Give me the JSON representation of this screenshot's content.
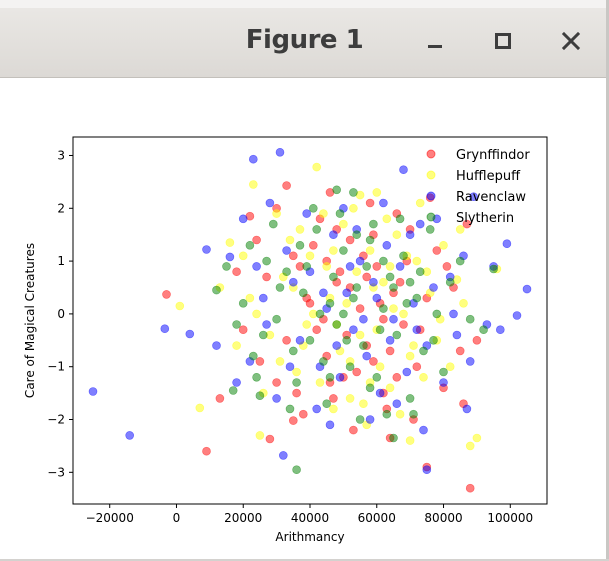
{
  "window": {
    "title": "Figure 1",
    "buttons": {
      "minimize": "minimize",
      "maximize": "maximize",
      "close": "close"
    }
  },
  "colors": {
    "Grynffindor": "#ff0000",
    "Hufflepuff": "#ffff00",
    "Ravenclaw": "#0000ff",
    "Slytherin": "#008000"
  },
  "chart_data": {
    "type": "scatter",
    "title": "",
    "xlabel": "Arithmancy",
    "ylabel": "Care of Magical Creatures",
    "xlim": [
      -31000,
      111000
    ],
    "ylim": [
      -3.6,
      3.35
    ],
    "xticks": [
      -20000,
      0,
      20000,
      40000,
      60000,
      80000,
      100000
    ],
    "xtick_labels": [
      "−20000",
      "0",
      "20000",
      "40000",
      "60000",
      "80000",
      "100000"
    ],
    "yticks": [
      -3,
      -2,
      -1,
      0,
      1,
      2,
      3
    ],
    "ytick_labels": [
      "−3",
      "−2",
      "−1",
      "0",
      "1",
      "2",
      "3"
    ],
    "grid": false,
    "legend_position": "top-right",
    "marker_alpha": 0.5,
    "series": [
      {
        "name": "Grynffindor",
        "color": "#ff0000",
        "points": [
          [
            -3000,
            0.37
          ],
          [
            9000,
            -2.6
          ],
          [
            33000,
            2.43
          ],
          [
            88000,
            -3.3
          ],
          [
            75000,
            -2.9
          ],
          [
            64000,
            -2.35
          ],
          [
            28000,
            -2.37
          ],
          [
            35000,
            -2.02
          ],
          [
            46000,
            2.3
          ],
          [
            13000,
            -1.6
          ],
          [
            22000,
            1.85
          ],
          [
            30000,
            2.0
          ],
          [
            35000,
            1.1
          ],
          [
            40000,
            0.2
          ],
          [
            42000,
            -0.3
          ],
          [
            45000,
            -0.8
          ],
          [
            48000,
            0.6
          ],
          [
            50000,
            -1.2
          ],
          [
            52000,
            1.4
          ],
          [
            55000,
            0.1
          ],
          [
            57000,
            -0.6
          ],
          [
            60000,
            0.9
          ],
          [
            62000,
            -1.5
          ],
          [
            65000,
            0.4
          ],
          [
            68000,
            -0.2
          ],
          [
            70000,
            1.6
          ],
          [
            72000,
            -1.0
          ],
          [
            75000,
            0.3
          ],
          [
            78000,
            1.2
          ],
          [
            80000,
            -1.4
          ],
          [
            83000,
            0.5
          ],
          [
            85000,
            -0.7
          ],
          [
            87000,
            1.7
          ],
          [
            90000,
            -0.5
          ],
          [
            25000,
            -0.9
          ],
          [
            27000,
            0.7
          ],
          [
            38000,
            -1.9
          ],
          [
            43000,
            1.8
          ],
          [
            47000,
            -1.6
          ],
          [
            53000,
            -2.2
          ],
          [
            58000,
            2.1
          ],
          [
            63000,
            -1.8
          ],
          [
            66000,
            1.9
          ],
          [
            71000,
            -2.0
          ],
          [
            76000,
            2.2
          ],
          [
            33000,
            -0.5
          ],
          [
            37000,
            0.9
          ],
          [
            44000,
            -0.1
          ],
          [
            49000,
            0.8
          ],
          [
            51000,
            -0.4
          ],
          [
            56000,
            1.1
          ],
          [
            59000,
            -0.9
          ],
          [
            61000,
            0.2
          ],
          [
            64000,
            -0.7
          ],
          [
            67000,
            0.6
          ],
          [
            20000,
            -0.3
          ],
          [
            18000,
            0.8
          ],
          [
            30000,
            -1.3
          ],
          [
            41000,
            1.3
          ],
          [
            54000,
            -1.1
          ],
          [
            69000,
            1.0
          ],
          [
            73000,
            -0.3
          ],
          [
            81000,
            0.9
          ],
          [
            86000,
            -1.7
          ],
          [
            24000,
            1.4
          ],
          [
            36000,
            -1.5
          ],
          [
            48000,
            1.6
          ],
          [
            59000,
            1.5
          ],
          [
            62000,
            -0.1
          ],
          [
            46000,
            -1.3
          ],
          [
            52000,
            0.5
          ],
          [
            39000,
            0.3
          ],
          [
            57000,
            0.7
          ],
          [
            45000,
            1.0
          ],
          [
            66000,
            -1.2
          ]
        ]
      },
      {
        "name": "Hufflepuff",
        "color": "#ffff00",
        "points": [
          [
            42000,
            2.78
          ],
          [
            1000,
            0.15
          ],
          [
            7000,
            -1.78
          ],
          [
            16000,
            1.35
          ],
          [
            23000,
            2.45
          ],
          [
            90000,
            -2.35
          ],
          [
            88000,
            -2.5
          ],
          [
            70000,
            -2.4
          ],
          [
            55000,
            2.25
          ],
          [
            60000,
            2.3
          ],
          [
            85000,
            1.6
          ],
          [
            96000,
            0.85
          ],
          [
            84000,
            0.65
          ],
          [
            13000,
            0.5
          ],
          [
            25000,
            -2.3
          ],
          [
            30000,
            1.9
          ],
          [
            35000,
            0.5
          ],
          [
            38000,
            -0.6
          ],
          [
            40000,
            1.1
          ],
          [
            43000,
            -1.3
          ],
          [
            46000,
            0.3
          ],
          [
            48000,
            -0.2
          ],
          [
            50000,
            1.7
          ],
          [
            52000,
            -0.9
          ],
          [
            54000,
            0.8
          ],
          [
            56000,
            -1.7
          ],
          [
            58000,
            1.2
          ],
          [
            60000,
            -0.3
          ],
          [
            62000,
            0.6
          ],
          [
            64000,
            -1.4
          ],
          [
            66000,
            1.5
          ],
          [
            68000,
            0.0
          ],
          [
            70000,
            -0.8
          ],
          [
            72000,
            1.0
          ],
          [
            74000,
            -1.2
          ],
          [
            76000,
            0.4
          ],
          [
            78000,
            -0.5
          ],
          [
            80000,
            1.3
          ],
          [
            82000,
            -1.0
          ],
          [
            86000,
            0.2
          ],
          [
            28000,
            -0.4
          ],
          [
            32000,
            0.7
          ],
          [
            36000,
            -1.1
          ],
          [
            44000,
            1.9
          ],
          [
            47000,
            -1.8
          ],
          [
            53000,
            2.0
          ],
          [
            57000,
            -2.1
          ],
          [
            63000,
            1.8
          ],
          [
            67000,
            -1.9
          ],
          [
            73000,
            2.1
          ],
          [
            22000,
            0.3
          ],
          [
            26000,
            -1.5
          ],
          [
            34000,
            1.4
          ],
          [
            39000,
            -0.2
          ],
          [
            45000,
            0.9
          ],
          [
            49000,
            -0.7
          ],
          [
            51000,
            0.2
          ],
          [
            55000,
            -0.4
          ],
          [
            59000,
            0.5
          ],
          [
            61000,
            -1.0
          ],
          [
            65000,
            0.1
          ],
          [
            69000,
            1.1
          ],
          [
            71000,
            -0.6
          ],
          [
            75000,
            0.8
          ],
          [
            79000,
            -0.1
          ],
          [
            18000,
            -0.6
          ],
          [
            20000,
            1.1
          ],
          [
            24000,
            0.0
          ],
          [
            31000,
            -0.9
          ],
          [
            41000,
            0.0
          ],
          [
            37000,
            1.6
          ],
          [
            47000,
            1.2
          ],
          [
            58000,
            -1.3
          ],
          [
            64000,
            0.9
          ],
          [
            52000,
            -1.6
          ]
        ]
      },
      {
        "name": "Ravenclaw",
        "color": "#0000ff",
        "points": [
          [
            -25000,
            -1.47
          ],
          [
            -14000,
            -2.3
          ],
          [
            -3500,
            -0.28
          ],
          [
            23000,
            2.93
          ],
          [
            31000,
            3.06
          ],
          [
            68000,
            2.73
          ],
          [
            89000,
            2.22
          ],
          [
            99000,
            1.33
          ],
          [
            105000,
            0.47
          ],
          [
            102000,
            -0.03
          ],
          [
            75000,
            -2.95
          ],
          [
            87000,
            -1.8
          ],
          [
            32000,
            -2.68
          ],
          [
            9000,
            1.22
          ],
          [
            16000,
            1.08
          ],
          [
            4000,
            -0.38
          ],
          [
            12000,
            -0.6
          ],
          [
            20000,
            1.8
          ],
          [
            28000,
            2.1
          ],
          [
            33000,
            1.2
          ],
          [
            37000,
            -0.5
          ],
          [
            40000,
            0.8
          ],
          [
            43000,
            -1.0
          ],
          [
            45000,
            0.1
          ],
          [
            47000,
            1.5
          ],
          [
            49000,
            -1.2
          ],
          [
            51000,
            0.4
          ],
          [
            53000,
            -0.3
          ],
          [
            55000,
            1.0
          ],
          [
            57000,
            -0.8
          ],
          [
            59000,
            0.6
          ],
          [
            61000,
            -1.5
          ],
          [
            63000,
            1.3
          ],
          [
            65000,
            -0.1
          ],
          [
            67000,
            0.9
          ],
          [
            69000,
            -1.1
          ],
          [
            71000,
            0.2
          ],
          [
            73000,
            1.7
          ],
          [
            75000,
            -0.6
          ],
          [
            77000,
            0.5
          ],
          [
            80000,
            -1.3
          ],
          [
            83000,
            0.0
          ],
          [
            86000,
            1.1
          ],
          [
            88000,
            -0.9
          ],
          [
            93000,
            -0.2
          ],
          [
            95000,
            0.9
          ],
          [
            97000,
            -0.3
          ],
          [
            18000,
            -1.3
          ],
          [
            22000,
            -0.9
          ],
          [
            26000,
            0.3
          ],
          [
            30000,
            -1.6
          ],
          [
            35000,
            0.6
          ],
          [
            39000,
            1.9
          ],
          [
            42000,
            -1.8
          ],
          [
            46000,
            -2.1
          ],
          [
            50000,
            2.0
          ],
          [
            54000,
            1.6
          ],
          [
            58000,
            -2.0
          ],
          [
            62000,
            2.1
          ],
          [
            66000,
            -1.7
          ],
          [
            70000,
            1.5
          ],
          [
            74000,
            -2.2
          ],
          [
            78000,
            1.8
          ],
          [
            82000,
            0.7
          ],
          [
            84000,
            -0.4
          ],
          [
            24000,
            0.9
          ],
          [
            27000,
            -0.2
          ],
          [
            34000,
            -1.0
          ],
          [
            44000,
            0.4
          ],
          [
            48000,
            -0.6
          ],
          [
            52000,
            0.9
          ],
          [
            56000,
            -0.1
          ],
          [
            60000,
            0.3
          ],
          [
            64000,
            -0.5
          ],
          [
            72000,
            -0.3
          ]
        ]
      },
      {
        "name": "Slytherin",
        "color": "#008000",
        "points": [
          [
            36000,
            -2.95
          ],
          [
            65000,
            -2.35
          ],
          [
            12000,
            0.45
          ],
          [
            17000,
            -1.45
          ],
          [
            25000,
            -1.55
          ],
          [
            53000,
            2.3
          ],
          [
            48000,
            2.35
          ],
          [
            95000,
            0.85
          ],
          [
            92000,
            -0.3
          ],
          [
            82000,
            0.6
          ],
          [
            20000,
            0.2
          ],
          [
            23000,
            -0.8
          ],
          [
            27000,
            1.0
          ],
          [
            30000,
            -0.1
          ],
          [
            33000,
            0.8
          ],
          [
            36000,
            -1.3
          ],
          [
            38000,
            0.4
          ],
          [
            40000,
            -0.5
          ],
          [
            42000,
            1.6
          ],
          [
            44000,
            -0.9
          ],
          [
            46000,
            0.2
          ],
          [
            48000,
            -0.2
          ],
          [
            50000,
            1.2
          ],
          [
            52000,
            -1.0
          ],
          [
            54000,
            0.5
          ],
          [
            56000,
            -0.6
          ],
          [
            58000,
            1.4
          ],
          [
            60000,
            -1.2
          ],
          [
            62000,
            0.1
          ],
          [
            64000,
            0.7
          ],
          [
            66000,
            -0.4
          ],
          [
            68000,
            1.1
          ],
          [
            70000,
            -1.6
          ],
          [
            72000,
            0.3
          ],
          [
            74000,
            -0.7
          ],
          [
            76000,
            1.6
          ],
          [
            78000,
            0.0
          ],
          [
            80000,
            -1.1
          ],
          [
            85000,
            1.0
          ],
          [
            88000,
            -0.1
          ],
          [
            29000,
            1.7
          ],
          [
            34000,
            -1.8
          ],
          [
            41000,
            2.0
          ],
          [
            45000,
            -1.7
          ],
          [
            49000,
            1.9
          ],
          [
            55000,
            -2.0
          ],
          [
            59000,
            1.7
          ],
          [
            63000,
            -1.9
          ],
          [
            67000,
            1.8
          ],
          [
            71000,
            -1.9
          ],
          [
            22000,
            1.3
          ],
          [
            26000,
            -0.4
          ],
          [
            31000,
            0.5
          ],
          [
            35000,
            -0.7
          ],
          [
            39000,
            0.9
          ],
          [
            43000,
            0.0
          ],
          [
            47000,
            0.7
          ],
          [
            51000,
            -0.5
          ],
          [
            53000,
            0.3
          ],
          [
            57000,
            0.9
          ],
          [
            61000,
            -0.3
          ],
          [
            65000,
            0.5
          ],
          [
            69000,
            0.2
          ],
          [
            73000,
            0.8
          ],
          [
            77000,
            -0.5
          ],
          [
            18000,
            -0.2
          ],
          [
            15000,
            0.9
          ],
          [
            24000,
            -1.2
          ],
          [
            37000,
            1.3
          ],
          [
            46000,
            -1.2
          ],
          [
            50000,
            0.0
          ],
          [
            54000,
            1.5
          ],
          [
            58000,
            -1.4
          ],
          [
            62000,
            1.0
          ],
          [
            70000,
            0.6
          ]
        ]
      }
    ]
  }
}
